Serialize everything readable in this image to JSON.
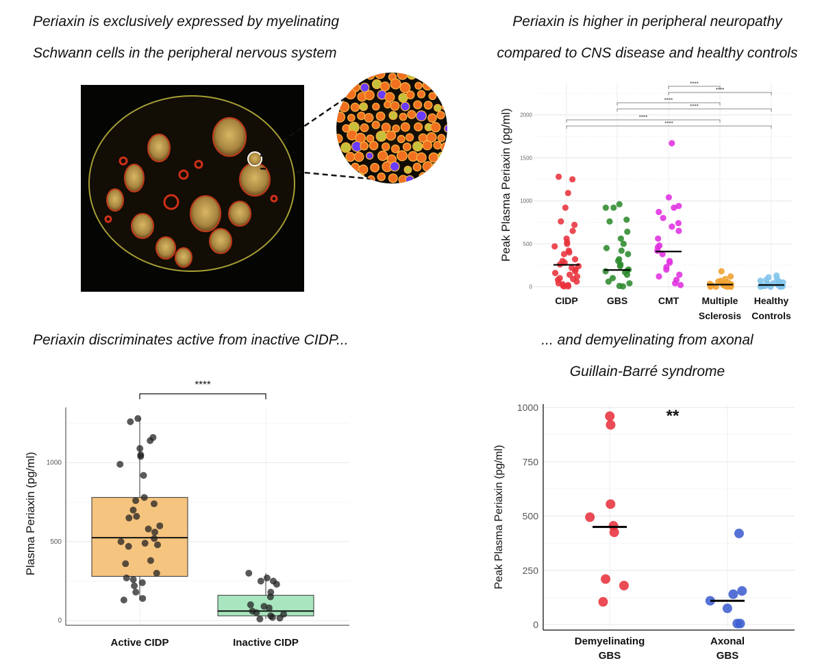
{
  "captions": {
    "top_left": [
      "Periaxin is exclusively expressed by myelinating",
      "Schwann cells in the peripheral nervous system"
    ],
    "top_right": [
      "Periaxin is higher in peripheral neuropathy",
      "compared to CNS disease and healthy controls"
    ],
    "bottom_left": [
      "Periaxin discriminates active from inactive CIDP..."
    ],
    "bottom_right": [
      "... and demyelinating from axonal",
      "Guillain-Barré syndrome"
    ]
  },
  "colors": {
    "cidp": "#e8323c",
    "gbs": "#2e8a2e",
    "cmt": "#e030e0",
    "ms": "#f0a030",
    "hc": "#7fc4ea",
    "active_box": "#f5c47f",
    "inactive_box": "#a8e6bf",
    "demyelinating": "#e8323c",
    "axonal": "#3f5fd0"
  },
  "chart_data": [
    {
      "type": "scatter",
      "id": "periaxin-by-disease",
      "ylabel": "Peak Plasma Periaxin (pg/ml)",
      "ylim": [
        -90,
        2380
      ],
      "yticks": [
        0,
        500,
        1000,
        1500,
        2000
      ],
      "categories": [
        "CIDP",
        "GBS",
        "CMT",
        "Multiple Sclerosis",
        "Healthy Controls"
      ],
      "category_lines": [
        [
          "CIDP"
        ],
        [
          "GBS"
        ],
        [
          "CMT"
        ],
        [
          "Multiple",
          "Sclerosis"
        ],
        [
          "Healthy",
          "Controls"
        ]
      ],
      "medians": [
        255,
        195,
        410,
        25,
        20
      ],
      "series": [
        {
          "category": "CIDP",
          "values": [
            1280,
            1250,
            1090,
            920,
            760,
            720,
            650,
            560,
            520,
            500,
            470,
            420,
            400,
            380,
            320,
            300,
            280,
            260,
            240,
            220,
            200,
            180,
            160,
            140,
            120,
            100,
            90,
            80,
            60,
            40,
            30,
            20,
            10,
            5,
            5
          ]
        },
        {
          "category": "GBS",
          "values": [
            960,
            920,
            920,
            780,
            760,
            640,
            560,
            500,
            450,
            420,
            380,
            320,
            300,
            260,
            240,
            200,
            190,
            180,
            170,
            140,
            100,
            60,
            40,
            10,
            5
          ]
        },
        {
          "category": "CMT",
          "values": [
            1670,
            1040,
            940,
            920,
            870,
            800,
            740,
            700,
            650,
            560,
            480,
            460,
            420,
            380,
            300,
            280,
            230,
            200,
            140,
            120,
            80,
            40,
            20
          ]
        },
        {
          "category": "Multiple Sclerosis",
          "values": [
            180,
            120,
            90,
            70,
            60,
            50,
            40,
            35,
            30,
            25,
            20,
            20,
            15,
            10,
            10,
            5,
            5,
            0,
            0,
            0,
            0
          ]
        },
        {
          "category": "Healthy Controls",
          "values": [
            130,
            110,
            90,
            80,
            70,
            60,
            50,
            40,
            35,
            30,
            25,
            20,
            15,
            12,
            10,
            8,
            5,
            3,
            0,
            0,
            0
          ]
        }
      ],
      "comparisons": [
        {
          "a": "CMT",
          "b": "Multiple Sclerosis",
          "label": "****"
        },
        {
          "a": "CMT",
          "b": "Healthy Controls",
          "label": "****"
        },
        {
          "a": "GBS",
          "b": "Multiple Sclerosis",
          "label": "****"
        },
        {
          "a": "GBS",
          "b": "Healthy Controls",
          "label": "****"
        },
        {
          "a": "CIDP",
          "b": "Multiple Sclerosis",
          "label": "****"
        },
        {
          "a": "CIDP",
          "b": "Healthy Controls",
          "label": "****"
        }
      ]
    },
    {
      "type": "box",
      "id": "active-vs-inactive-cidp",
      "ylabel": "Plasma Periaxin (pg/ml)",
      "ylim": [
        -30,
        1350
      ],
      "yticks": [
        0,
        500,
        1000
      ],
      "categories": [
        "Active CIDP",
        "Inactive CIDP"
      ],
      "boxes": [
        {
          "category": "Active CIDP",
          "q1": 280,
          "median": 525,
          "q3": 780,
          "whisker_low": 130,
          "whisker_high": 1280
        },
        {
          "category": "Inactive CIDP",
          "q1": 30,
          "median": 60,
          "q3": 160,
          "whisker_low": 10,
          "whisker_high": 300
        }
      ],
      "points": [
        {
          "category": "Active CIDP",
          "values": [
            1280,
            1260,
            1160,
            1140,
            1090,
            1050,
            1040,
            990,
            920,
            780,
            760,
            740,
            700,
            660,
            650,
            600,
            580,
            560,
            520,
            500,
            490,
            480,
            470,
            380,
            360,
            300,
            270,
            260,
            240,
            220,
            180,
            140,
            130
          ]
        },
        {
          "category": "Inactive CIDP",
          "values": [
            300,
            270,
            250,
            250,
            230,
            180,
            150,
            100,
            90,
            80,
            60,
            50,
            40,
            30,
            20,
            15,
            10
          ]
        }
      ],
      "comparison": {
        "label": "****"
      }
    },
    {
      "type": "scatter",
      "id": "demyelinating-vs-axonal-gbs",
      "ylabel": "Peak Plasma Periaxin (pg/ml)",
      "ylim": [
        -25,
        1000
      ],
      "yticks": [
        0,
        250,
        500,
        750,
        1000
      ],
      "categories": [
        "Demyelinating GBS",
        "Axonal GBS"
      ],
      "category_lines": [
        [
          "Demyelinating",
          "GBS"
        ],
        [
          "Axonal",
          "GBS"
        ]
      ],
      "medians": [
        450,
        110
      ],
      "series": [
        {
          "category": "Demyelinating GBS",
          "values": [
            960,
            920,
            555,
            495,
            455,
            425,
            210,
            180,
            105
          ]
        },
        {
          "category": "Axonal GBS",
          "values": [
            420,
            155,
            140,
            110,
            75,
            5,
            5
          ]
        }
      ],
      "comparison": {
        "label": "**"
      }
    }
  ]
}
